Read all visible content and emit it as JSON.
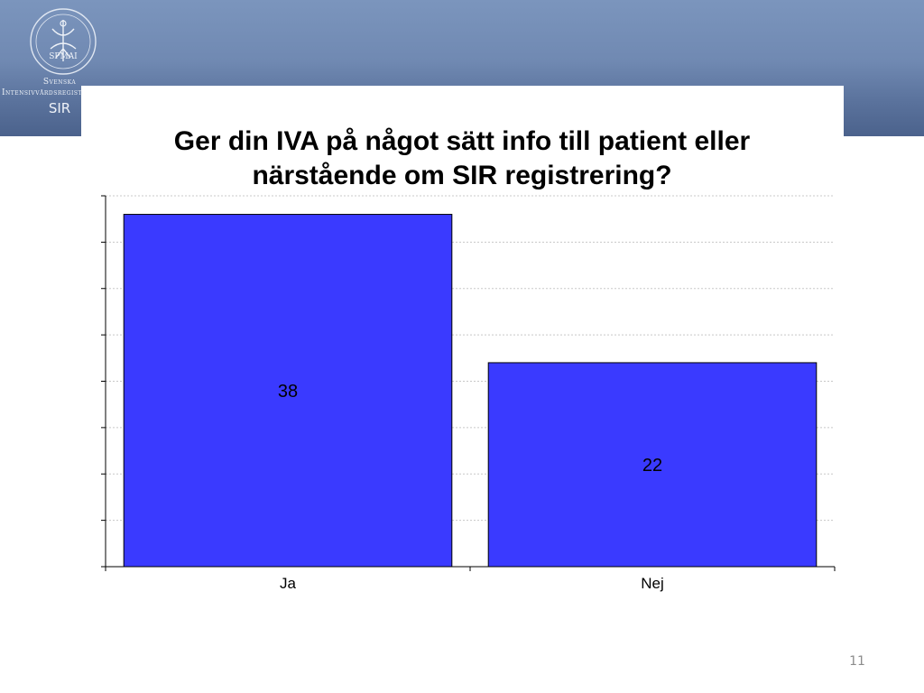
{
  "header": {
    "logo": {
      "name": "sir-logo",
      "seal_text": "SPMAI",
      "line1": "Svenska",
      "line2": "Intensivvårdsregister",
      "line3": "SIR"
    },
    "colors": {
      "band_top": "#7b95bd",
      "band_bottom": "#4b628c"
    }
  },
  "chart_data": {
    "type": "bar",
    "title_lines": [
      "Ger din IVA på något sätt info  till patient eller",
      "närstående om SIR registrering?"
    ],
    "categories": [
      "Ja",
      "Nej"
    ],
    "values": [
      38,
      22
    ],
    "data_labels": [
      "38",
      "22"
    ],
    "ylim": [
      0,
      40
    ],
    "xlabel": "",
    "ylabel": "",
    "grid": true,
    "legend": "none",
    "bar_color": "#3a3aff"
  },
  "footer": {
    "page_number": "11"
  }
}
